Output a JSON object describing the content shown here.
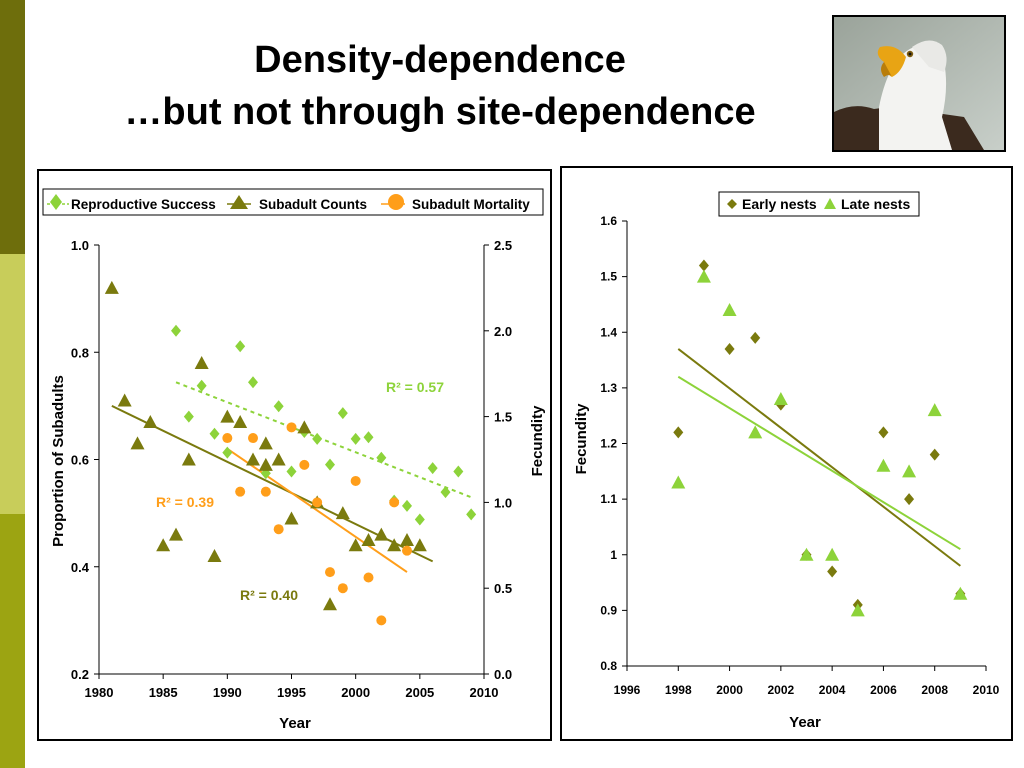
{
  "slide": {
    "title_line1": "Density-dependence",
    "title_line2": "…but not through site-dependence"
  },
  "colors": {
    "stripe_dark": "#6e6e0c",
    "stripe_light": "#c8cd5a",
    "stripe_mid": "#9ca412",
    "reproductive": "#8dd33a",
    "subadult_counts": "#7a7a0e",
    "mortality": "#ff9e1a",
    "early": "#7a7a0e",
    "late": "#8dd33a"
  },
  "chart_data": [
    {
      "type": "scatter",
      "title": "",
      "xlabel": "Year",
      "ylabel": "Proportion of Subadults",
      "ylabel_right": "Fecundity",
      "xlim": [
        1980,
        2010
      ],
      "ylim": [
        0.2,
        1.0
      ],
      "ylim_right": [
        0.0,
        2.5
      ],
      "x_ticks": [
        "1980",
        "1985",
        "1990",
        "1995",
        "2000",
        "2005",
        "2010"
      ],
      "y_ticks": [
        "0.2",
        "0.4",
        "0.6",
        "0.8",
        "1.0"
      ],
      "y_ticks_right": [
        "0.0",
        "0.5",
        "1.0",
        "1.5",
        "2.0",
        "2.5"
      ],
      "legend_position": "top",
      "series": [
        {
          "name": "Reproductive Success",
          "axis": "right",
          "marker": "diamond",
          "x": [
            1986,
            1987,
            1988,
            1989,
            1990,
            1991,
            1992,
            1993,
            1994,
            1995,
            1996,
            1997,
            1998,
            1999,
            2000,
            2001,
            2002,
            2003,
            2004,
            2005,
            2006,
            2007,
            2008,
            2009
          ],
          "y": [
            2.0,
            1.5,
            1.68,
            1.4,
            1.29,
            1.91,
            1.7,
            1.17,
            1.56,
            1.18,
            1.41,
            1.37,
            1.22,
            1.52,
            1.37,
            1.38,
            1.26,
            1.01,
            0.98,
            0.9,
            1.2,
            1.06,
            1.18,
            0.93
          ],
          "trend": {
            "x": [
              1986,
              2009
            ],
            "y": [
              1.7,
              1.03
            ]
          },
          "r2_label": "R² = 0.57"
        },
        {
          "name": "Subadult Counts",
          "axis": "left",
          "marker": "triangle",
          "x": [
            1981,
            1982,
            1983,
            1984,
            1985,
            1986,
            1987,
            1988,
            1989,
            1990,
            1991,
            1992,
            1993,
            1993,
            1994,
            1995,
            1996,
            1997,
            1998,
            1999,
            2000,
            2001,
            2002,
            2003,
            2004,
            2005
          ],
          "y": [
            0.92,
            0.71,
            0.63,
            0.67,
            0.44,
            0.46,
            0.6,
            0.78,
            0.42,
            0.68,
            0.67,
            0.6,
            0.63,
            0.59,
            0.6,
            0.49,
            0.66,
            0.52,
            0.33,
            0.5,
            0.44,
            0.45,
            0.46,
            0.44,
            0.45,
            0.44
          ],
          "trend": {
            "x": [
              1981,
              2006
            ],
            "y": [
              0.7,
              0.41
            ]
          },
          "r2_label": "R² = 0.40"
        },
        {
          "name": "Subadult Mortality",
          "axis": "left",
          "marker": "circle",
          "x": [
            1990,
            1991,
            1992,
            1993,
            1994,
            1995,
            1996,
            1997,
            1998,
            1999,
            2000,
            2001,
            2002,
            2003,
            2004
          ],
          "y": [
            0.64,
            0.54,
            0.64,
            0.54,
            0.47,
            0.66,
            0.59,
            0.52,
            0.39,
            0.36,
            0.56,
            0.38,
            0.3,
            0.52,
            0.43
          ],
          "trend": {
            "x": [
              1990,
              2004
            ],
            "y": [
              0.62,
              0.39
            ]
          },
          "r2_label": "R² = 0.39"
        }
      ]
    },
    {
      "type": "scatter",
      "title": "",
      "xlabel": "Year",
      "ylabel": "Fecundity",
      "xlim": [
        1996,
        2010
      ],
      "ylim": [
        0.8,
        1.6
      ],
      "x_ticks": [
        "1996",
        "1998",
        "2000",
        "2002",
        "2004",
        "2006",
        "2008",
        "2010"
      ],
      "y_ticks": [
        "0.8",
        "0.9",
        "1",
        "1.1",
        "1.2",
        "1.3",
        "1.4",
        "1.5",
        "1.6"
      ],
      "legend_position": "top-right",
      "series": [
        {
          "name": "Early nests",
          "marker": "diamond",
          "x": [
            1998,
            1999,
            2000,
            2001,
            2002,
            2003,
            2004,
            2005,
            2006,
            2007,
            2008,
            2009
          ],
          "y": [
            1.22,
            1.52,
            1.37,
            1.39,
            1.27,
            1.0,
            0.97,
            0.91,
            1.22,
            1.1,
            1.18,
            0.93
          ],
          "trend": {
            "x": [
              1998,
              2009
            ],
            "y": [
              1.37,
              0.98
            ]
          }
        },
        {
          "name": "Late nests",
          "marker": "triangle",
          "x": [
            1998,
            1999,
            2000,
            2001,
            2002,
            2003,
            2004,
            2005,
            2006,
            2007,
            2008,
            2009
          ],
          "y": [
            1.13,
            1.5,
            1.44,
            1.22,
            1.28,
            1.0,
            1.0,
            0.9,
            1.16,
            1.15,
            1.26,
            0.93
          ],
          "trend": {
            "x": [
              1998,
              2009
            ],
            "y": [
              1.32,
              1.01
            ]
          }
        }
      ]
    }
  ]
}
